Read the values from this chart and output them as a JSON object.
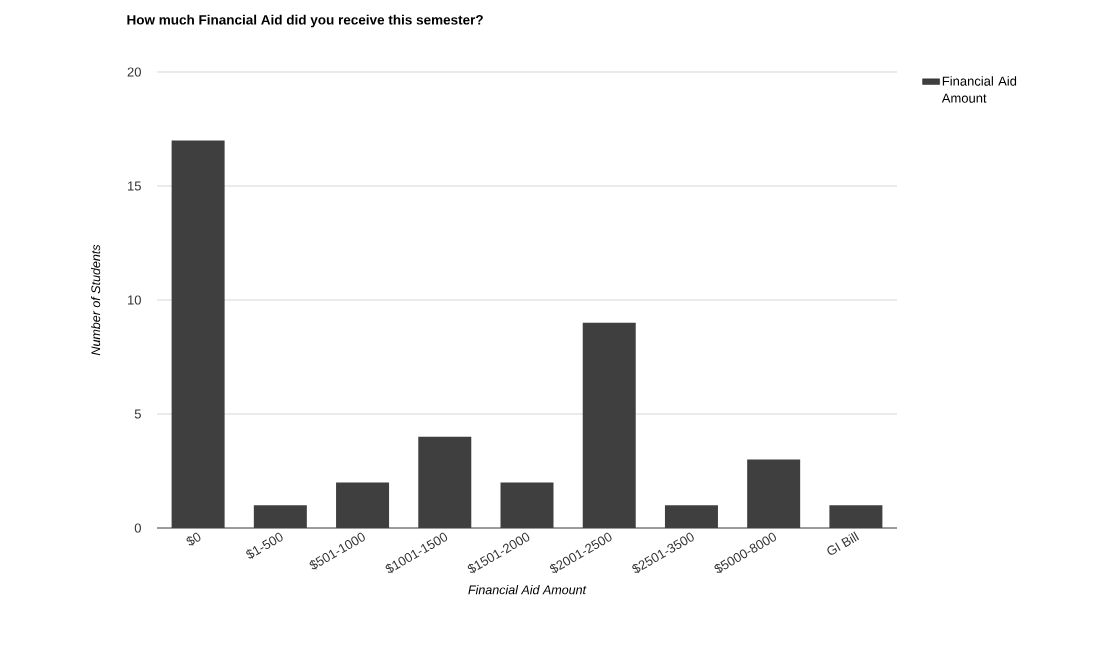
{
  "chart_data": {
    "type": "bar",
    "title": "How much Financial Aid did you receive this semester?",
    "xlabel": "Financial Aid Amount",
    "ylabel": "Number of Students",
    "categories": [
      "$0",
      "$1-500",
      "$501-1000",
      "$1001-1500",
      "$1501-2000",
      "$2001-2500",
      "$2501-3500",
      "$5000-8000",
      "GI Bill"
    ],
    "series": [
      {
        "name": "Financial Aid Amount",
        "color": "#3f3f3f",
        "values": [
          17,
          1,
          2,
          4,
          2,
          9,
          1,
          3,
          1
        ]
      }
    ],
    "ylim": [
      0,
      20
    ],
    "yticks": [
      0,
      5,
      10,
      15,
      20
    ],
    "grid": "y",
    "legend": "right"
  }
}
